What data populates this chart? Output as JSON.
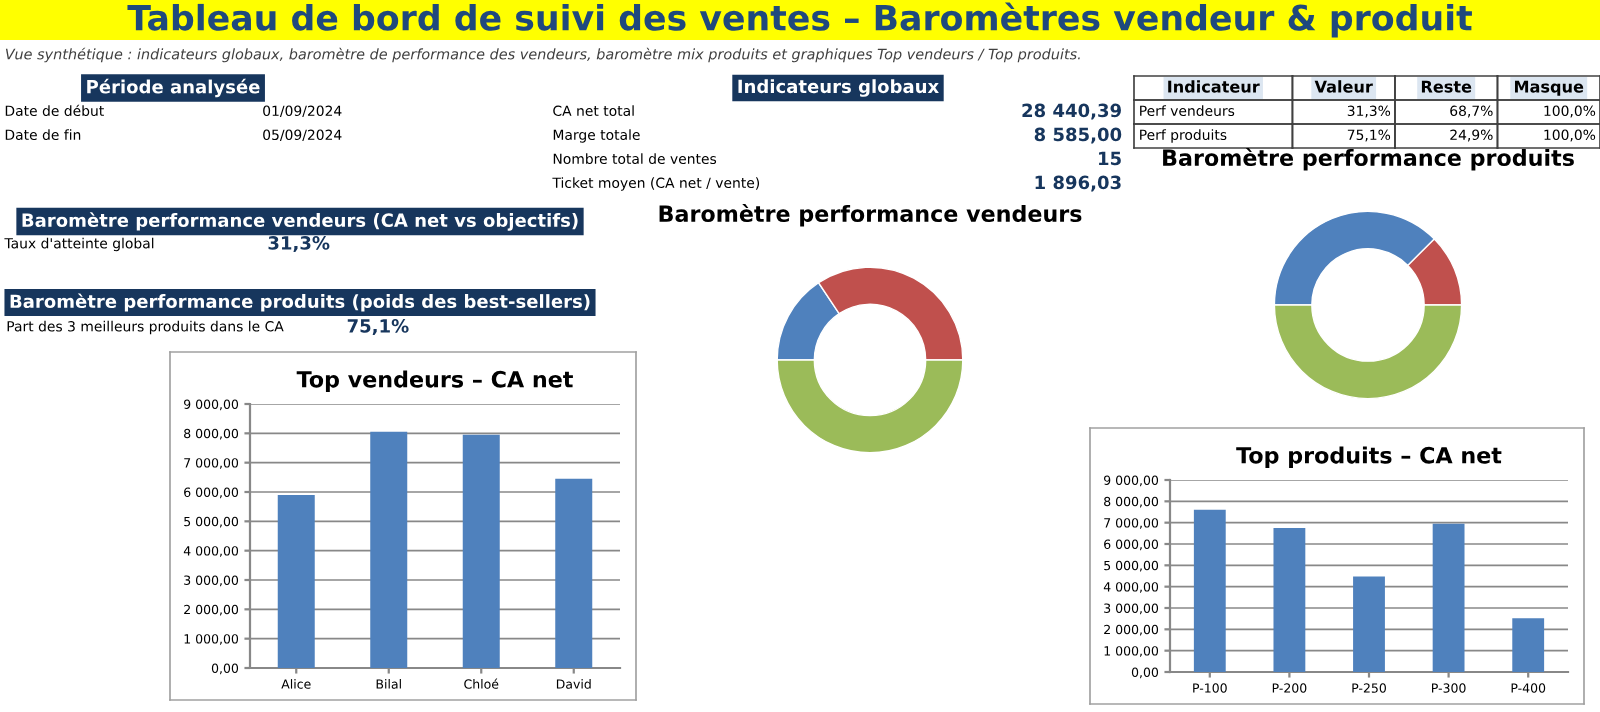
{
  "chart_data": [
    {
      "type": "other",
      "title": "Tableau de bord de suivi des ventes – Baromètres vendeur & produit",
      "subtitle": "Vue synthétique : indicateurs globaux, baromètre de performance des vendeurs, baromètre mix produits et graphiques Top vendeurs / Top produits."
    },
    {
      "type": "other",
      "title": "Période analysée",
      "annotations": [
        "Date de début",
        "01/09/2024",
        "Date de fin",
        "05/09/2024"
      ]
    },
    {
      "type": "other",
      "title": "Indicateurs globaux",
      "annotations": [
        "CA net total",
        "28 440,39",
        "Marge totale",
        "8 585,00",
        "Nombre total de ventes",
        "15",
        "Ticket moyen (CA net / vente)",
        "1 896,03"
      ]
    },
    {
      "type": "other",
      "annotations": [
        "Indicateur",
        "Valeur",
        "Reste",
        "Masque",
        "Perf vendeurs",
        "31,3%",
        "68,7%",
        "100,0%",
        "Perf produits",
        "75,1%",
        "24,9%",
        "100,0%"
      ]
    },
    {
      "type": "other",
      "title": "Baromètre performance vendeurs (CA net vs objectifs)",
      "annotations": [
        "Taux d'atteinte global",
        "31,3%"
      ]
    },
    {
      "type": "other",
      "title": "Baromètre performance produits (poids des best-sellers)",
      "annotations": [
        "Part des 3 meilleurs produits dans le CA",
        "75,1%"
      ]
    },
    {
      "type": "donut",
      "title": "Baromètre performance vendeurs",
      "categories": [
        null,
        null,
        null
      ],
      "values": [
        15.65,
        34.35,
        50.0
      ],
      "colors": [
        "#4f81bd",
        "#c0504d",
        "#9bbb59"
      ]
    },
    {
      "type": "donut",
      "title": "Baromètre performance produits",
      "categories": [
        null,
        null,
        null
      ],
      "values": [
        37.55,
        12.45,
        50.0
      ],
      "colors": [
        "#4f81bd",
        "#c0504d",
        "#9bbb59"
      ]
    },
    {
      "type": "bar",
      "title": "Top vendeurs – CA net",
      "categories": [
        "Alice",
        "Bilal",
        "Chloé",
        "David"
      ],
      "series": [
        {
          "color": "#4f81bd",
          "values": [
            5900,
            8050,
            7950,
            6450
          ]
        }
      ],
      "ylim": [
        0,
        9000
      ],
      "yticks": [
        {
          "value": 0,
          "label": "0,00"
        },
        {
          "value": 1000,
          "label": "1 000,00"
        },
        {
          "value": 2000,
          "label": "2 000,00"
        },
        {
          "value": 3000,
          "label": "3 000,00"
        },
        {
          "value": 4000,
          "label": "4 000,00"
        },
        {
          "value": 5000,
          "label": "5 000,00"
        },
        {
          "value": 6000,
          "label": "6 000,00"
        },
        {
          "value": 7000,
          "label": "7 000,00"
        },
        {
          "value": 8000,
          "label": "8 000,00"
        },
        {
          "value": 9000,
          "label": "9 000,00"
        }
      ],
      "grid": "y"
    },
    {
      "type": "bar",
      "title": "Top produits – CA net",
      "categories": [
        "P-100",
        "P-200",
        "P-250",
        "P-300",
        "P-400"
      ],
      "series": [
        {
          "color": "#4f81bd",
          "values": [
            7600,
            6750,
            4480,
            6950,
            2520
          ]
        }
      ],
      "ylim": [
        0,
        9000
      ],
      "yticks": [
        {
          "value": 0,
          "label": "0,00"
        },
        {
          "value": 1000,
          "label": "1 000,00"
        },
        {
          "value": 2000,
          "label": "2 000,00"
        },
        {
          "value": 3000,
          "label": "3 000,00"
        },
        {
          "value": 4000,
          "label": "4 000,00"
        },
        {
          "value": 5000,
          "label": "5 000,00"
        },
        {
          "value": 6000,
          "label": "6 000,00"
        },
        {
          "value": 7000,
          "label": "7 000,00"
        },
        {
          "value": 8000,
          "label": "8 000,00"
        },
        {
          "value": 9000,
          "label": "9 000,00"
        }
      ],
      "grid": "y"
    }
  ]
}
